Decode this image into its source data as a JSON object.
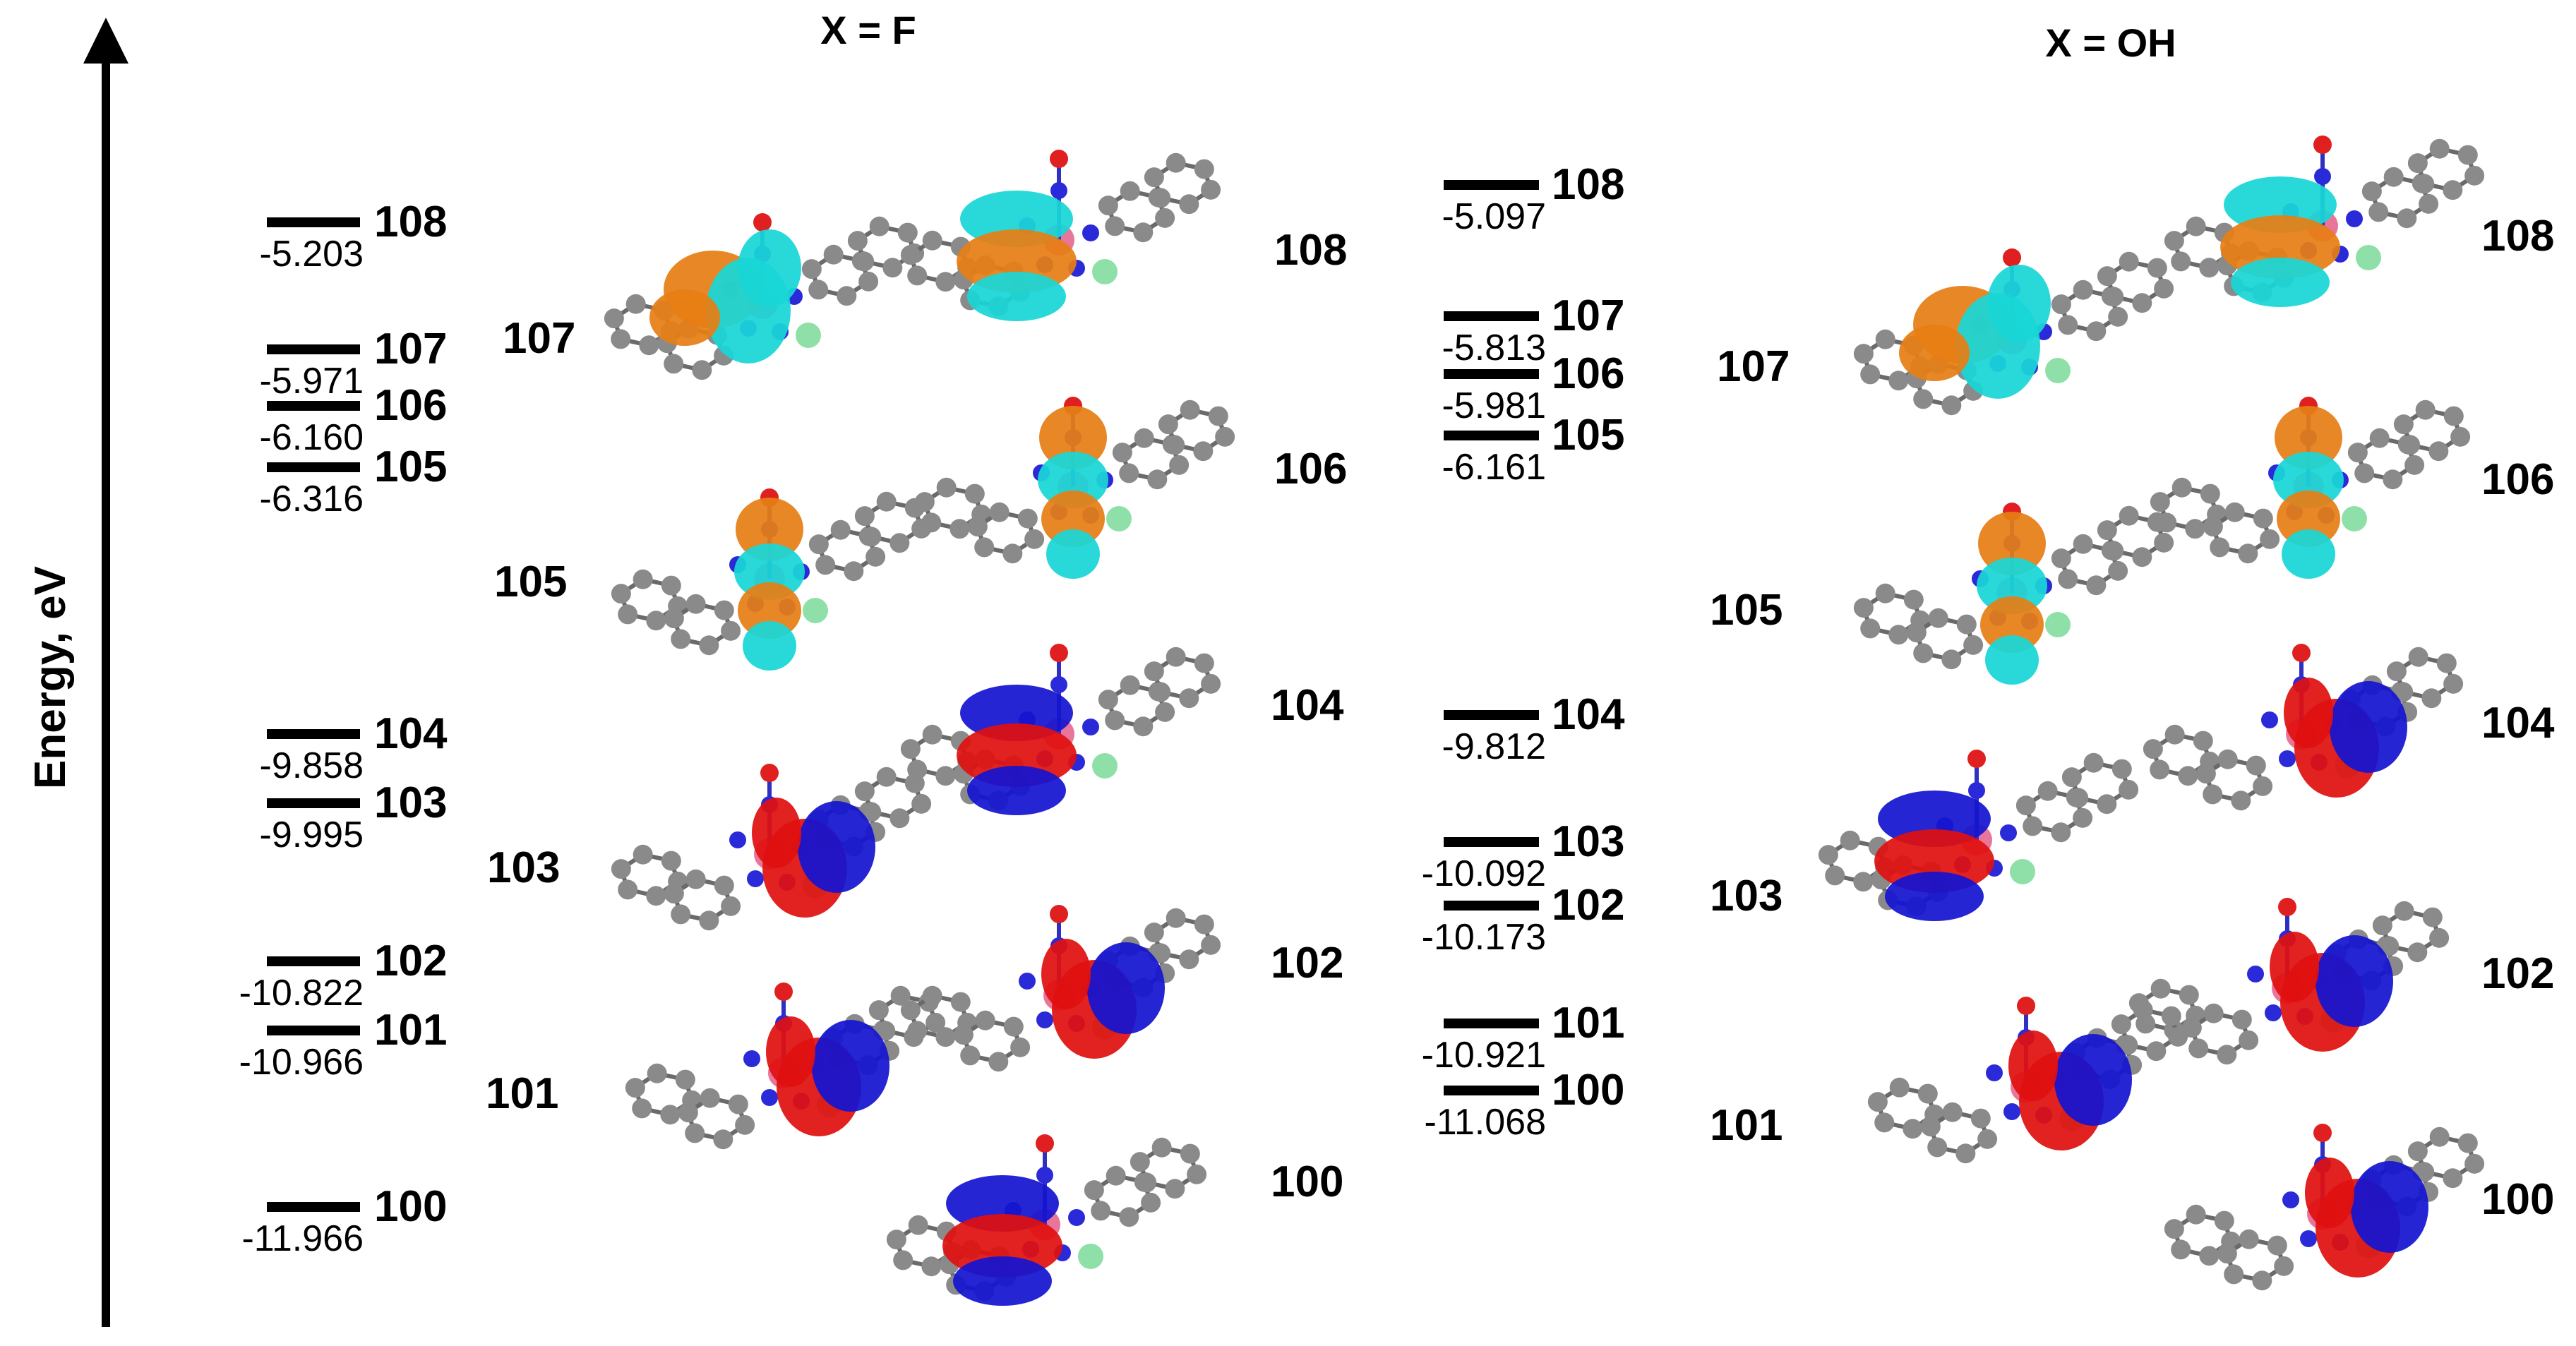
{
  "axis": {
    "label": "Energy, eV"
  },
  "panels": [
    {
      "title": "X = F",
      "levels": [
        {
          "orbital": "108",
          "energy": "-5.203"
        },
        {
          "orbital": "107",
          "energy": "-5.971"
        },
        {
          "orbital": "106",
          "energy": "-6.160"
        },
        {
          "orbital": "105",
          "energy": "-6.316"
        },
        {
          "orbital": "104",
          "energy": "-9.858"
        },
        {
          "orbital": "103",
          "energy": "-9.995"
        },
        {
          "orbital": "102",
          "energy": "-10.822"
        },
        {
          "orbital": "101",
          "energy": "-10.966"
        },
        {
          "orbital": "100",
          "energy": "-11.966"
        }
      ],
      "orbital_plots": [
        {
          "label": "107",
          "colors": [
            "#e67e14",
            "#19d6d6"
          ]
        },
        {
          "label": "108",
          "colors": [
            "#e67e14",
            "#19d6d6"
          ]
        },
        {
          "label": "105",
          "colors": [
            "#e67e14",
            "#19d6d6"
          ]
        },
        {
          "label": "106",
          "colors": [
            "#e67e14",
            "#19d6d6"
          ]
        },
        {
          "label": "103",
          "colors": [
            "#e01010",
            "#1414d0"
          ]
        },
        {
          "label": "104",
          "colors": [
            "#e01010",
            "#1414d0"
          ]
        },
        {
          "label": "101",
          "colors": [
            "#e01010",
            "#1414d0"
          ]
        },
        {
          "label": "102",
          "colors": [
            "#e01010",
            "#1414d0"
          ]
        },
        {
          "label": "100",
          "colors": [
            "#e01010",
            "#1414d0"
          ]
        }
      ]
    },
    {
      "title": "X = OH",
      "levels": [
        {
          "orbital": "108",
          "energy": "-5.097"
        },
        {
          "orbital": "107",
          "energy": "-5.813"
        },
        {
          "orbital": "106",
          "energy": "-5.981"
        },
        {
          "orbital": "105",
          "energy": "-6.161"
        },
        {
          "orbital": "104",
          "energy": "-9.812"
        },
        {
          "orbital": "103",
          "energy": "-10.092"
        },
        {
          "orbital": "102",
          "energy": "-10.173"
        },
        {
          "orbital": "101",
          "energy": "-10.921"
        },
        {
          "orbital": "100",
          "energy": "-11.068"
        }
      ],
      "orbital_plots": [
        {
          "label": "108",
          "colors": [
            "#e67e14",
            "#19d6d6"
          ]
        },
        {
          "label": "107",
          "colors": [
            "#e67e14",
            "#19d6d6"
          ]
        },
        {
          "label": "106",
          "colors": [
            "#e67e14",
            "#19d6d6"
          ]
        },
        {
          "label": "105",
          "colors": [
            "#e67e14",
            "#19d6d6"
          ]
        },
        {
          "label": "104",
          "colors": [
            "#e01010",
            "#1414d0"
          ]
        },
        {
          "label": "103",
          "colors": [
            "#e01010",
            "#1414d0"
          ]
        },
        {
          "label": "102",
          "colors": [
            "#e01010",
            "#1414d0"
          ]
        },
        {
          "label": "101",
          "colors": [
            "#e01010",
            "#1414d0"
          ]
        },
        {
          "label": "100",
          "colors": [
            "#e01010",
            "#1414d0"
          ]
        }
      ]
    }
  ],
  "colors": {
    "virtual_pos": "#e67e14",
    "virtual_neg": "#19d6d6",
    "occupied_pos": "#e01010",
    "occupied_neg": "#1414d0",
    "carbon": "#8a8a8a",
    "nitrogen": "#2a2ad8",
    "metal": "#e8769a",
    "halogen": "#8ee0a8"
  }
}
